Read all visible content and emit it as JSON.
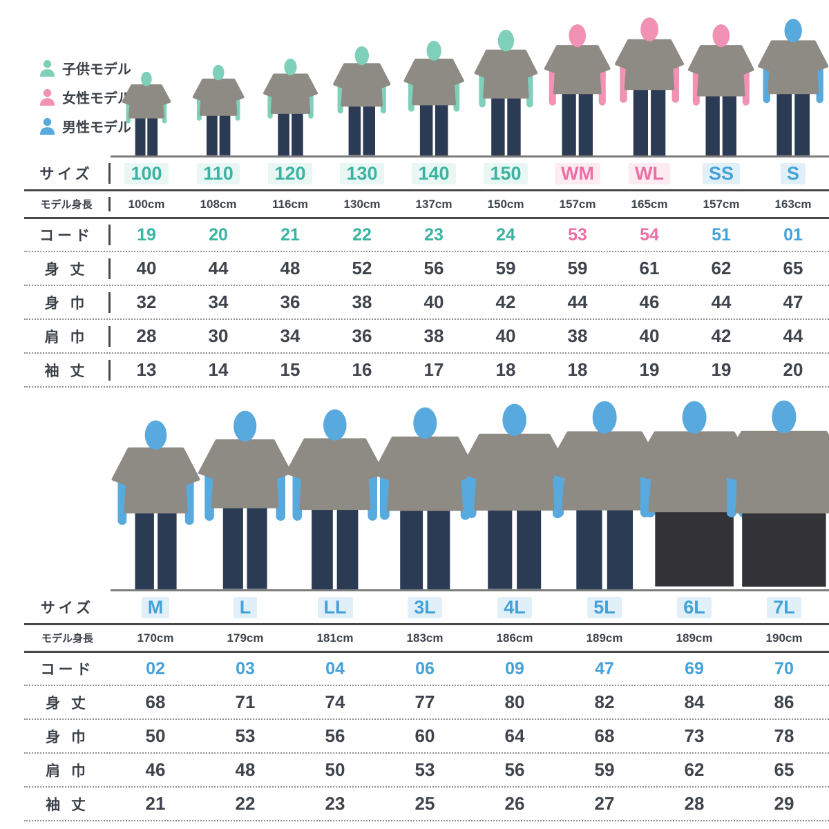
{
  "page": {
    "background": "#ffffff"
  },
  "colors": {
    "teal_text": "#3bb3a2",
    "pink_text": "#ec6ea5",
    "blue_text": "#43a2d9",
    "teal_icon": "#7fd0ba",
    "pink_icon": "#f191b3",
    "blue_icon": "#58a9de",
    "label_text": "#3b4149",
    "value_text": "#3f444c",
    "shirt": "#8e8a84",
    "jeans": "#2c3b54",
    "shorts": "#333337",
    "baseline": "#7c7c7c"
  },
  "legend": {
    "items": [
      {
        "label": "子供モデル",
        "color": "teal"
      },
      {
        "label": "女性モデル",
        "color": "pink"
      },
      {
        "label": "男性モデル",
        "color": "blue"
      }
    ]
  },
  "row_labels": {
    "size": "サイズ",
    "model_height": "モデル身長",
    "code": "コード",
    "body_length": "身 丈",
    "body_width": "身 巾",
    "shoulder_width": "肩 巾",
    "sleeve_length": "袖 丈"
  },
  "tables": [
    {
      "id": "top",
      "columns": [
        {
          "size": "100",
          "text_color": "teal",
          "model_color": "teal",
          "model_height": "100cm",
          "code": "19",
          "body_length": 40,
          "body_width": 32,
          "shoulder_width": 28,
          "sleeve_length": 13,
          "pants": "jeans"
        },
        {
          "size": "110",
          "text_color": "teal",
          "model_color": "teal",
          "model_height": "108cm",
          "code": "20",
          "body_length": 44,
          "body_width": 34,
          "shoulder_width": 30,
          "sleeve_length": 14,
          "pants": "jeans"
        },
        {
          "size": "120",
          "text_color": "teal",
          "model_color": "teal",
          "model_height": "116cm",
          "code": "21",
          "body_length": 48,
          "body_width": 36,
          "shoulder_width": 34,
          "sleeve_length": 15,
          "pants": "jeans"
        },
        {
          "size": "130",
          "text_color": "teal",
          "model_color": "teal",
          "model_height": "130cm",
          "code": "22",
          "body_length": 52,
          "body_width": 38,
          "shoulder_width": 36,
          "sleeve_length": 16,
          "pants": "jeans"
        },
        {
          "size": "140",
          "text_color": "teal",
          "model_color": "teal",
          "model_height": "137cm",
          "code": "23",
          "body_length": 56,
          "body_width": 40,
          "shoulder_width": 38,
          "sleeve_length": 17,
          "pants": "jeans"
        },
        {
          "size": "150",
          "text_color": "teal",
          "model_color": "teal",
          "model_height": "150cm",
          "code": "24",
          "body_length": 59,
          "body_width": 42,
          "shoulder_width": 40,
          "sleeve_length": 18,
          "pants": "jeans"
        },
        {
          "size": "WM",
          "text_color": "pink",
          "model_color": "pink",
          "model_height": "157cm",
          "code": "53",
          "body_length": 59,
          "body_width": 44,
          "shoulder_width": 38,
          "sleeve_length": 18,
          "pants": "jeans"
        },
        {
          "size": "WL",
          "text_color": "pink",
          "model_color": "pink",
          "model_height": "165cm",
          "code": "54",
          "body_length": 61,
          "body_width": 46,
          "shoulder_width": 40,
          "sleeve_length": 19,
          "pants": "jeans"
        },
        {
          "size": "SS",
          "text_color": "blue",
          "model_color": "pink",
          "model_height": "157cm",
          "code": "51",
          "body_length": 62,
          "body_width": 44,
          "shoulder_width": 42,
          "sleeve_length": 19,
          "pants": "jeans"
        },
        {
          "size": "S",
          "text_color": "blue",
          "model_color": "blue",
          "model_height": "163cm",
          "code": "01",
          "body_length": 65,
          "body_width": 47,
          "shoulder_width": 44,
          "sleeve_length": 20,
          "pants": "jeans"
        }
      ]
    },
    {
      "id": "bottom",
      "columns": [
        {
          "size": "M",
          "text_color": "blue",
          "model_color": "blue",
          "model_height": "170cm",
          "code": "02",
          "body_length": 68,
          "body_width": 50,
          "shoulder_width": 46,
          "sleeve_length": 21,
          "pants": "jeans"
        },
        {
          "size": "L",
          "text_color": "blue",
          "model_color": "blue",
          "model_height": "179cm",
          "code": "03",
          "body_length": 71,
          "body_width": 53,
          "shoulder_width": 48,
          "sleeve_length": 22,
          "pants": "jeans"
        },
        {
          "size": "LL",
          "text_color": "blue",
          "model_color": "blue",
          "model_height": "181cm",
          "code": "04",
          "body_length": 74,
          "body_width": 56,
          "shoulder_width": 50,
          "sleeve_length": 23,
          "pants": "jeans"
        },
        {
          "size": "3L",
          "text_color": "blue",
          "model_color": "blue",
          "model_height": "183cm",
          "code": "06",
          "body_length": 77,
          "body_width": 60,
          "shoulder_width": 53,
          "sleeve_length": 25,
          "pants": "jeans"
        },
        {
          "size": "4L",
          "text_color": "blue",
          "model_color": "blue",
          "model_height": "186cm",
          "code": "09",
          "body_length": 80,
          "body_width": 64,
          "shoulder_width": 56,
          "sleeve_length": 26,
          "pants": "jeans"
        },
        {
          "size": "5L",
          "text_color": "blue",
          "model_color": "blue",
          "model_height": "189cm",
          "code": "47",
          "body_length": 82,
          "body_width": 68,
          "shoulder_width": 59,
          "sleeve_length": 27,
          "pants": "jeans"
        },
        {
          "size": "6L",
          "text_color": "blue",
          "model_color": "blue",
          "model_height": "189cm",
          "code": "69",
          "body_length": 84,
          "body_width": 73,
          "shoulder_width": 62,
          "sleeve_length": 28,
          "pants": "shorts"
        },
        {
          "size": "7L",
          "text_color": "blue",
          "model_color": "blue",
          "model_height": "190cm",
          "code": "70",
          "body_length": 86,
          "body_width": 78,
          "shoulder_width": 65,
          "sleeve_length": 29,
          "pants": "shorts"
        }
      ]
    }
  ]
}
